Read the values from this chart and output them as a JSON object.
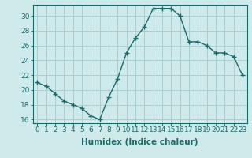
{
  "x": [
    0,
    1,
    2,
    3,
    4,
    5,
    6,
    7,
    8,
    9,
    10,
    11,
    12,
    13,
    14,
    15,
    16,
    17,
    18,
    19,
    20,
    21,
    22,
    23
  ],
  "y": [
    21,
    20.5,
    19.5,
    18.5,
    18,
    17.5,
    16.5,
    16,
    19,
    21.5,
    25,
    27,
    28.5,
    31,
    31,
    31,
    30,
    26.5,
    26.5,
    26,
    25,
    25,
    24.5,
    22
  ],
  "line_color": "#1a6b6b",
  "marker": "+",
  "marker_size": 4,
  "marker_lw": 1.0,
  "bg_color": "#ceeaea",
  "grid_color": "#aacece",
  "xlabel": "Humidex (Indice chaleur)",
  "xlim": [
    -0.5,
    23.5
  ],
  "ylim": [
    15.5,
    31.5
  ],
  "yticks": [
    16,
    18,
    20,
    22,
    24,
    26,
    28,
    30
  ],
  "xticks": [
    0,
    1,
    2,
    3,
    4,
    5,
    6,
    7,
    8,
    9,
    10,
    11,
    12,
    13,
    14,
    15,
    16,
    17,
    18,
    19,
    20,
    21,
    22,
    23
  ],
  "xtick_labels": [
    "0",
    "1",
    "2",
    "3",
    "4",
    "5",
    "6",
    "7",
    "8",
    "9",
    "10",
    "11",
    "12",
    "13",
    "14",
    "15",
    "16",
    "17",
    "18",
    "19",
    "20",
    "21",
    "22",
    "23"
  ],
  "font_size": 6.5,
  "label_font_size": 7.5,
  "line_width": 1.0
}
